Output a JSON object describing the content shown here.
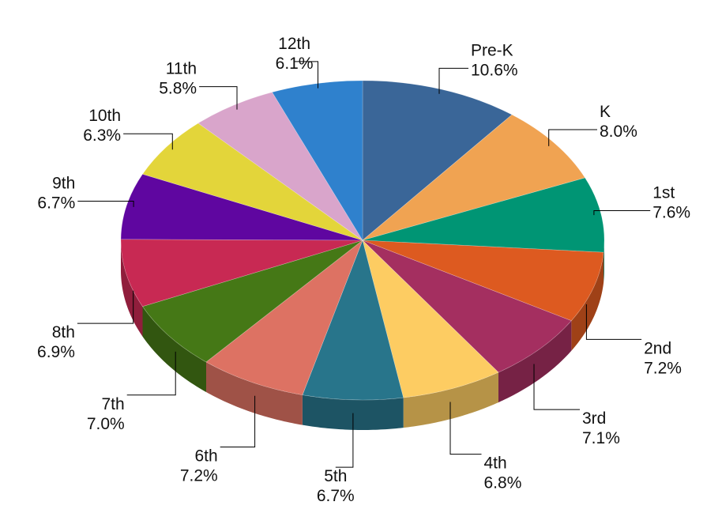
{
  "chart_data": {
    "type": "pie",
    "style": "3d",
    "title": "",
    "categories": [
      "Pre-K",
      "K",
      "1st",
      "2nd",
      "3rd",
      "4th",
      "5th",
      "6th",
      "7th",
      "8th",
      "9th",
      "10th",
      "11th",
      "12th"
    ],
    "values": [
      10.6,
      8.0,
      7.6,
      7.2,
      7.1,
      6.8,
      6.7,
      7.2,
      7.0,
      6.9,
      6.7,
      6.3,
      5.8,
      6.1
    ],
    "value_labels": [
      "10.6%",
      "8.0%",
      "7.6%",
      "7.2%",
      "7.1%",
      "6.8%",
      "6.7%",
      "7.2%",
      "7.0%",
      "6.9%",
      "6.7%",
      "6.3%",
      "5.8%",
      "6.1%"
    ],
    "colors": [
      "#3a6698",
      "#f0a352",
      "#009574",
      "#dd5a20",
      "#a42f60",
      "#fdcc62",
      "#28758b",
      "#dd7263",
      "#457816",
      "#c82953",
      "#5f06a0",
      "#e3d53a",
      "#d9a5cb",
      "#2f81cd"
    ],
    "start": "top, clockwise",
    "legend": "none"
  }
}
